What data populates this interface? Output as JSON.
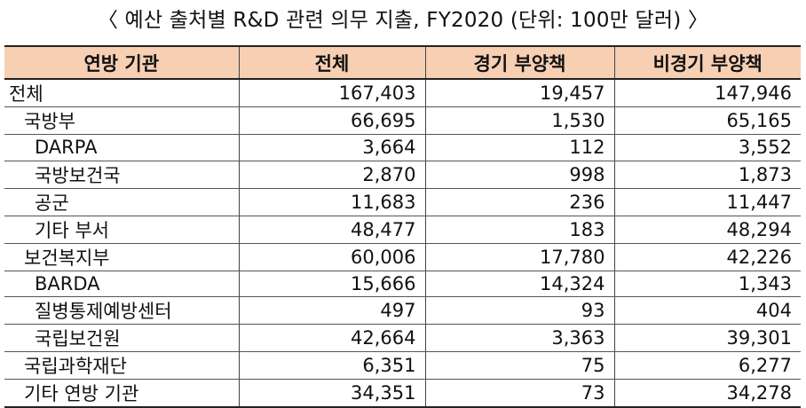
{
  "title": "〈 예산 출처별 R&D 관련 의무 지출, FY2020 (단위: 100만 달러) 〉",
  "table": {
    "headers": [
      "연방 기관",
      "전체",
      "경기 부양책",
      "비경기 부양책"
    ],
    "rows": [
      {
        "name": "전체",
        "level": 0,
        "total": "167,403",
        "stimulus": "19,457",
        "non_stimulus": "147,946"
      },
      {
        "name": "국방부",
        "level": 1,
        "total": "66,695",
        "stimulus": "1,530",
        "non_stimulus": "65,165"
      },
      {
        "name": "DARPA",
        "level": 2,
        "total": "3,664",
        "stimulus": "112",
        "non_stimulus": "3,552"
      },
      {
        "name": "국방보건국",
        "level": 2,
        "total": "2,870",
        "stimulus": "998",
        "non_stimulus": "1,873"
      },
      {
        "name": "공군",
        "level": 2,
        "total": "11,683",
        "stimulus": "236",
        "non_stimulus": "11,447"
      },
      {
        "name": "기타 부서",
        "level": 2,
        "total": "48,477",
        "stimulus": "183",
        "non_stimulus": "48,294"
      },
      {
        "name": "보건복지부",
        "level": 1,
        "total": "60,006",
        "stimulus": "17,780",
        "non_stimulus": "42,226"
      },
      {
        "name": "BARDA",
        "level": 2,
        "total": "15,666",
        "stimulus": "14,324",
        "non_stimulus": "1,343"
      },
      {
        "name": "질병통제예방센터",
        "level": 2,
        "total": "497",
        "stimulus": "93",
        "non_stimulus": "404"
      },
      {
        "name": "국립보건원",
        "level": 2,
        "total": "42,664",
        "stimulus": "3,363",
        "non_stimulus": "39,301"
      },
      {
        "name": "국립과학재단",
        "level": 1,
        "total": "6,351",
        "stimulus": "75",
        "non_stimulus": "6,277"
      },
      {
        "name": "기타 연방 기관",
        "level": 1,
        "total": "34,351",
        "stimulus": "73",
        "non_stimulus": "34,278"
      }
    ]
  },
  "colors": {
    "header_fill": "#f7cfb3",
    "rule": "#222222"
  }
}
